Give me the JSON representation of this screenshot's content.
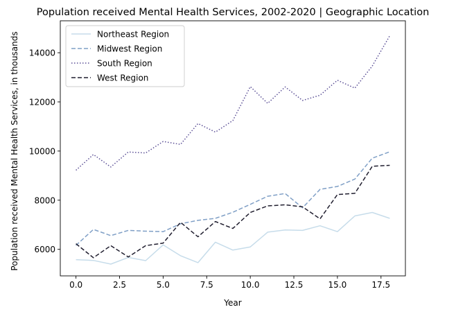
{
  "chart_data": {
    "type": "line",
    "title": "Population received Mental Health Services, 2002-2020 | Geographic Location",
    "xlabel": "Year",
    "ylabel": "Population received Mental Health Services, in thousands",
    "xlim": [
      -0.9,
      18.9
    ],
    "ylim": [
      4920,
      15300
    ],
    "x": [
      0,
      1,
      2,
      3,
      4,
      5,
      6,
      7,
      8,
      9,
      10,
      11,
      12,
      13,
      14,
      15,
      16,
      17,
      18
    ],
    "xticks": [
      0.0,
      2.5,
      5.0,
      7.5,
      10.0,
      12.5,
      15.0,
      17.5
    ],
    "xtick_labels": [
      "0.0",
      "2.5",
      "5.0",
      "7.5",
      "10.0",
      "12.5",
      "15.0",
      "17.5"
    ],
    "yticks": [
      6000,
      8000,
      10000,
      12000,
      14000
    ],
    "ytick_labels": [
      "6000",
      "8000",
      "10000",
      "12000",
      "14000"
    ],
    "grid": false,
    "legend_position": "upper-left",
    "series": [
      {
        "name": "Northeast Region",
        "color": "#c6dcea",
        "dash": "solid",
        "values": [
          5580,
          5550,
          5400,
          5670,
          5540,
          6180,
          5740,
          5460,
          6290,
          5970,
          6100,
          6700,
          6790,
          6770,
          6960,
          6720,
          7360,
          7500,
          7260
        ]
      },
      {
        "name": "Midwest Region",
        "color": "#7f9fc6",
        "dash": "dashed",
        "values": [
          6160,
          6810,
          6560,
          6770,
          6740,
          6720,
          7040,
          7180,
          7260,
          7510,
          7830,
          8160,
          8270,
          7690,
          8440,
          8560,
          8860,
          9710,
          9970
        ]
      },
      {
        "name": "South Region",
        "color": "#5a4e95",
        "dash": "dotted",
        "values": [
          9220,
          9860,
          9350,
          9960,
          9920,
          10390,
          10270,
          11120,
          10770,
          11240,
          12620,
          11940,
          12610,
          12060,
          12270,
          12880,
          12560,
          13460,
          14690
        ]
      },
      {
        "name": "West Region",
        "color": "#1f1d2e",
        "dash": "dashed",
        "values": [
          6230,
          5660,
          6150,
          5690,
          6150,
          6250,
          7100,
          6510,
          7130,
          6850,
          7500,
          7770,
          7810,
          7730,
          7240,
          8230,
          8280,
          9380,
          9420
        ]
      }
    ]
  }
}
